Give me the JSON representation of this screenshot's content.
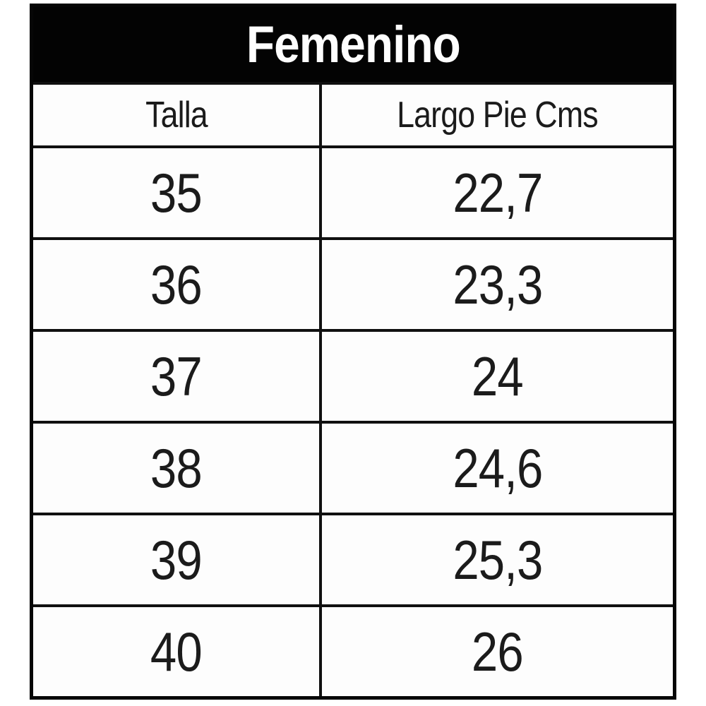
{
  "title": "Femenino",
  "chart_data": {
    "type": "table",
    "title": "Femenino",
    "columns": [
      "Talla",
      "Largo Pie Cms"
    ],
    "rows": [
      [
        "35",
        "22,7"
      ],
      [
        "36",
        "23,3"
      ],
      [
        "37",
        "24"
      ],
      [
        "38",
        "24,6"
      ],
      [
        "39",
        "25,3"
      ],
      [
        "40",
        "26"
      ]
    ]
  },
  "colors": {
    "banner_bg": "#030303",
    "banner_text": "#fefefe",
    "border": "#101010",
    "cell_bg": "#fdfdfd",
    "text": "#1b1b1b",
    "page_bg": "#ffffff"
  }
}
